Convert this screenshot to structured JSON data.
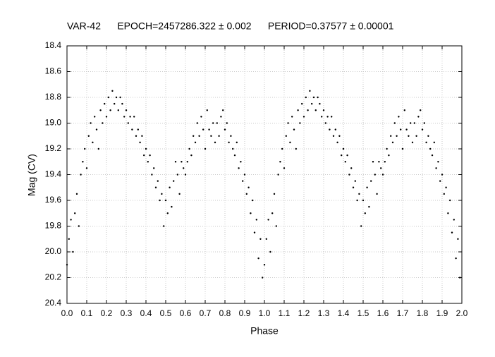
{
  "chart_data": {
    "type": "scatter",
    "title": "VAR-42      EPOCH=2457286.322 ± 0.002      PERIOD=0.37577 ± 0.00001",
    "x_label": "Phase",
    "y_label": "Mag (CV)",
    "color": "#000000",
    "grid": true,
    "y_inverted": true,
    "xlim": [
      0,
      2
    ],
    "ylim": [
      20.4,
      18.4
    ],
    "xticks": [
      {
        "value": 0,
        "label": "0.0"
      },
      0.1,
      0.2,
      0.3,
      0.4,
      0.5,
      0.6,
      0.7,
      0.8,
      0.9,
      {
        "value": 1,
        "label": "1.0"
      },
      1.1,
      1.2,
      1.3,
      1.4,
      1.5,
      1.6,
      1.7,
      1.8,
      1.9,
      {
        "value": 2,
        "label": "2.0"
      }
    ],
    "yticks": [
      18.4,
      18.6,
      18.8,
      {
        "value": 19,
        "label": "19.0"
      },
      19.2,
      19.4,
      19.6,
      19.8,
      {
        "value": 20,
        "label": "20.0"
      },
      20.2,
      20.4
    ],
    "x": [
      0.0,
      0.01,
      0.02,
      0.03,
      0.04,
      0.05,
      0.06,
      0.07,
      0.08,
      0.09,
      0.1,
      0.11,
      0.12,
      0.13,
      0.14,
      0.15,
      0.16,
      0.17,
      0.18,
      0.19,
      0.2,
      0.21,
      0.22,
      0.23,
      0.24,
      0.25,
      0.26,
      0.27,
      0.28,
      0.29,
      0.3,
      0.31,
      0.32,
      0.33,
      0.34,
      0.35,
      0.36,
      0.37,
      0.38,
      0.39,
      0.4,
      0.41,
      0.42,
      0.43,
      0.44,
      0.45,
      0.46,
      0.47,
      0.48,
      0.49,
      0.5,
      0.51,
      0.52,
      0.53,
      0.54,
      0.55,
      0.56,
      0.57,
      0.58,
      0.59,
      0.6,
      0.61,
      0.62,
      0.63,
      0.64,
      0.65,
      0.66,
      0.67,
      0.68,
      0.69,
      0.7,
      0.71,
      0.72,
      0.73,
      0.74,
      0.75,
      0.76,
      0.77,
      0.78,
      0.79,
      0.8,
      0.81,
      0.82,
      0.83,
      0.84,
      0.85,
      0.86,
      0.87,
      0.88,
      0.89,
      0.9,
      0.91,
      0.92,
      0.93,
      0.94,
      0.95,
      0.96,
      0.97,
      0.98,
      0.99,
      1.0,
      1.01,
      1.02,
      1.03,
      1.04,
      1.05,
      1.06,
      1.07,
      1.08,
      1.09,
      1.1,
      1.11,
      1.12,
      1.13,
      1.14,
      1.15,
      1.16,
      1.17,
      1.18,
      1.19,
      1.2,
      1.21,
      1.22,
      1.23,
      1.24,
      1.25,
      1.26,
      1.27,
      1.28,
      1.29,
      1.3,
      1.31,
      1.32,
      1.33,
      1.34,
      1.35,
      1.36,
      1.37,
      1.38,
      1.39,
      1.4,
      1.41,
      1.42,
      1.43,
      1.44,
      1.45,
      1.46,
      1.47,
      1.48,
      1.49,
      1.5,
      1.51,
      1.52,
      1.53,
      1.54,
      1.55,
      1.56,
      1.57,
      1.58,
      1.59,
      1.6,
      1.61,
      1.62,
      1.63,
      1.64,
      1.65,
      1.66,
      1.67,
      1.68,
      1.69,
      1.7,
      1.71,
      1.72,
      1.73,
      1.74,
      1.75,
      1.76,
      1.77,
      1.78,
      1.79,
      1.8,
      1.81,
      1.82,
      1.83,
      1.84,
      1.85,
      1.86,
      1.87,
      1.88,
      1.89,
      1.9,
      1.91,
      1.92,
      1.93,
      1.94,
      1.95,
      1.96,
      1.97,
      1.98,
      1.99
    ],
    "values": [
      20.1,
      19.9,
      19.75,
      20.0,
      19.7,
      19.55,
      19.8,
      19.4,
      19.3,
      19.2,
      19.35,
      19.1,
      19.0,
      19.15,
      18.95,
      19.05,
      19.2,
      18.9,
      19.0,
      18.85,
      18.95,
      18.8,
      18.9,
      18.75,
      18.85,
      18.8,
      18.9,
      18.8,
      18.85,
      18.95,
      18.9,
      19.0,
      18.95,
      19.05,
      18.95,
      19.1,
      19.05,
      19.15,
      19.1,
      19.25,
      19.2,
      19.3,
      19.25,
      19.4,
      19.35,
      19.5,
      19.45,
      19.6,
      19.55,
      19.8,
      19.6,
      19.7,
      19.5,
      19.65,
      19.45,
      19.3,
      19.4,
      19.55,
      19.3,
      19.35,
      19.4,
      19.3,
      19.2,
      19.25,
      19.1,
      19.15,
      19.0,
      19.1,
      18.95,
      19.05,
      19.2,
      18.9,
      19.05,
      19.1,
      19.0,
      19.15,
      19.0,
      19.1,
      18.95,
      18.9,
      19.05,
      19.0,
      19.15,
      19.1,
      19.2,
      19.25,
      19.15,
      19.35,
      19.3,
      19.45,
      19.4,
      19.55,
      19.5,
      19.7,
      19.6,
      19.85,
      19.75,
      20.05,
      19.9,
      20.2,
      20.1,
      19.9,
      19.75,
      20.0,
      19.7,
      19.55,
      19.8,
      19.4,
      19.3,
      19.2,
      19.35,
      19.1,
      19.0,
      19.15,
      18.95,
      19.05,
      19.2,
      18.9,
      19.0,
      18.85,
      18.95,
      18.8,
      18.9,
      18.75,
      18.85,
      18.8,
      18.9,
      18.8,
      18.85,
      18.95,
      18.9,
      19.0,
      18.95,
      19.05,
      18.95,
      19.1,
      19.05,
      19.15,
      19.1,
      19.25,
      19.2,
      19.3,
      19.25,
      19.4,
      19.35,
      19.5,
      19.45,
      19.6,
      19.55,
      19.8,
      19.6,
      19.7,
      19.5,
      19.65,
      19.45,
      19.3,
      19.4,
      19.55,
      19.3,
      19.35,
      19.4,
      19.3,
      19.2,
      19.25,
      19.1,
      19.15,
      19.0,
      19.1,
      18.95,
      19.05,
      19.2,
      18.9,
      19.05,
      19.1,
      19.0,
      19.15,
      19.0,
      19.1,
      18.95,
      18.9,
      19.05,
      19.0,
      19.15,
      19.1,
      19.2,
      19.25,
      19.15,
      19.35,
      19.3,
      19.45,
      19.4,
      19.55,
      19.5,
      19.7,
      19.6,
      19.85,
      19.75,
      20.05,
      19.9,
      20.2
    ]
  }
}
